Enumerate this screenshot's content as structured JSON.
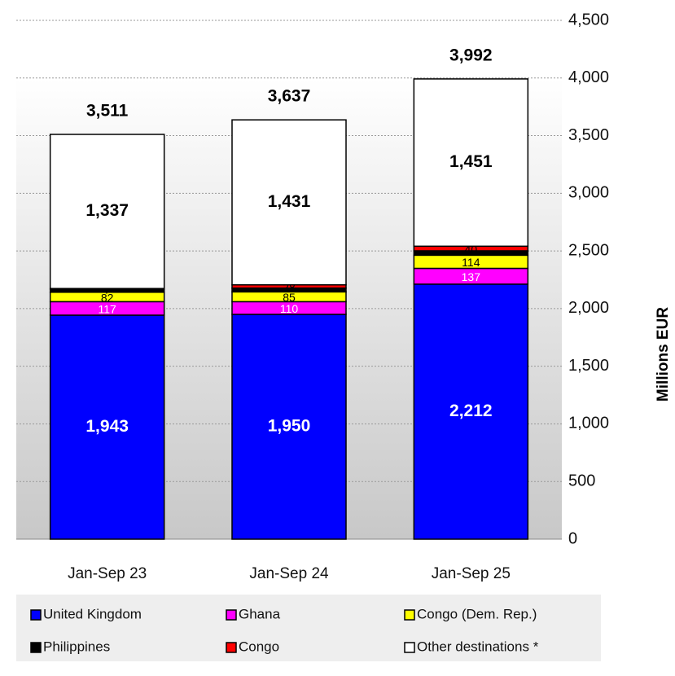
{
  "chart_data": {
    "type": "stacked_bar",
    "categories": [
      "Jan-Sep 23",
      "Jan-Sep 24",
      "Jan-Sep 25"
    ],
    "y_axis_label": "Millions  EUR",
    "ylim": [
      0,
      4500
    ],
    "yticks": [
      0,
      500,
      {
        "value": 1000,
        "label": "1,000"
      },
      {
        "value": 1500,
        "label": "1,500"
      },
      {
        "value": 2000,
        "label": "2,000"
      },
      {
        "value": 2500,
        "label": "2,500"
      },
      {
        "value": 3000,
        "label": "3,000"
      },
      {
        "value": 3500,
        "label": "3,500"
      },
      {
        "value": 4000,
        "label": "4,000"
      },
      {
        "value": 4500,
        "label": "4,500"
      }
    ],
    "grid": true,
    "axis_side": "right",
    "legend": "bottom",
    "series": [
      {
        "name": "United Kingdom",
        "color": "#0000ff",
        "label_color": "#ffffff",
        "values": [
          1943,
          1950,
          2212
        ],
        "value_labels": [
          "1,943",
          "1,950",
          "2,212"
        ]
      },
      {
        "name": "Ghana",
        "color": "#ff00ff",
        "label_color": "#ffffff",
        "values": [
          117,
          110,
          137
        ]
      },
      {
        "name": "Congo (Dem. Rep.)",
        "color": "#ffff00",
        "label_color": "#000000",
        "values": [
          82,
          85,
          114
        ]
      },
      {
        "name": "Philippines",
        "color": "#000000",
        "label_color": "#000000",
        "values": [
          25,
          33,
          38
        ],
        "value_labels": [
          null,
          null,
          null
        ]
      },
      {
        "name": "Congo",
        "color": "#ff0000",
        "label_color": "#000000",
        "values": [
          7,
          28,
          40
        ]
      },
      {
        "name": "Other destinations *",
        "color": "#ffffff",
        "label_color": "#000000",
        "values": [
          1337,
          1431,
          1451
        ],
        "value_labels": [
          "1,337",
          "1,431",
          "1,451"
        ]
      }
    ],
    "totals": [
      3511,
      3637,
      3992
    ],
    "total_labels": [
      "3,511",
      "3,637",
      "3,992"
    ]
  }
}
